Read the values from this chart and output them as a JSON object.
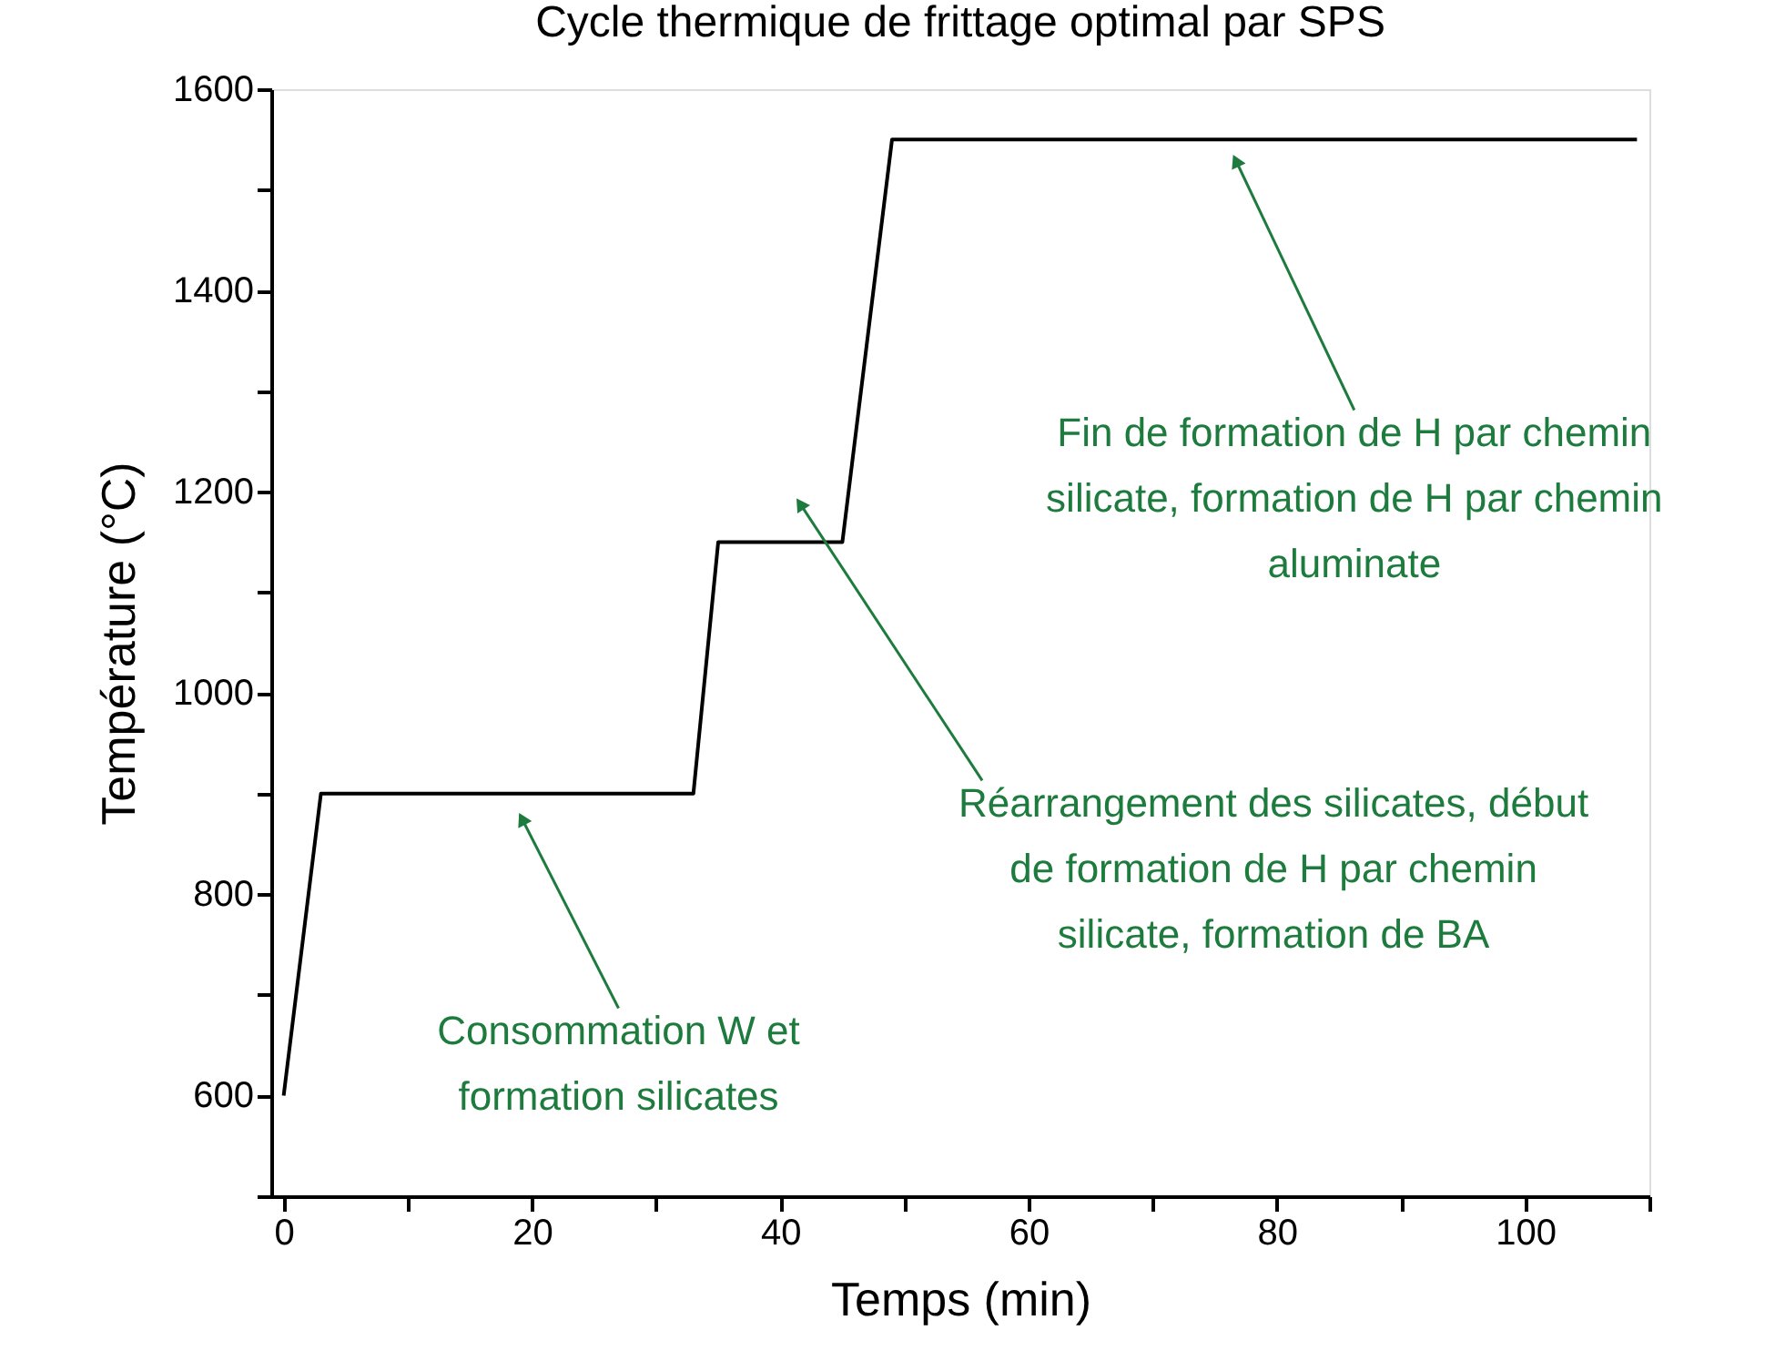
{
  "chart_data": {
    "type": "line",
    "title": "Cycle thermique de frittage optimal par SPS",
    "xlabel": "Temps (min)",
    "ylabel": "Température (°C)",
    "x": [
      0,
      3,
      33,
      35,
      45,
      49,
      109
    ],
    "series": [
      {
        "color": "#000000",
        "values": [
          600,
          900,
          900,
          1150,
          1150,
          1550,
          1550
        ]
      }
    ],
    "xlim": [
      -1,
      110
    ],
    "ylim": [
      500,
      1600
    ],
    "xticks": [
      0,
      {
        "value": 10,
        "label": null
      },
      20,
      {
        "value": 30,
        "label": null
      },
      40,
      {
        "value": 50,
        "label": null
      },
      60,
      {
        "value": 70,
        "label": null
      },
      80,
      {
        "value": 90,
        "label": null
      },
      100,
      {
        "value": 110,
        "label": null
      }
    ],
    "yticks": [
      {
        "value": 500,
        "label": null
      },
      600,
      {
        "value": 700,
        "label": null
      },
      800,
      {
        "value": 900,
        "label": null
      },
      1000,
      {
        "value": 1100,
        "label": null
      },
      1200,
      {
        "value": 1300,
        "label": null
      },
      1400,
      {
        "value": 1500,
        "label": null
      },
      1600
    ],
    "grid": false,
    "marker": "none",
    "line_style": "solid",
    "annotations": [
      {
        "text": "Consommation W et\nformation silicates",
        "x": 19.2,
        "y": 875
      },
      {
        "text": "Réarrangement des silicates, début\nde formation de H par chemin\nsilicate, formation de BA",
        "x": 41.6,
        "y": 1188
      },
      {
        "text": "Fin de formation de H par chemin\nsilicate, formation de H par chemin\naluminate",
        "x": 76.7,
        "y": 1529
      }
    ]
  }
}
